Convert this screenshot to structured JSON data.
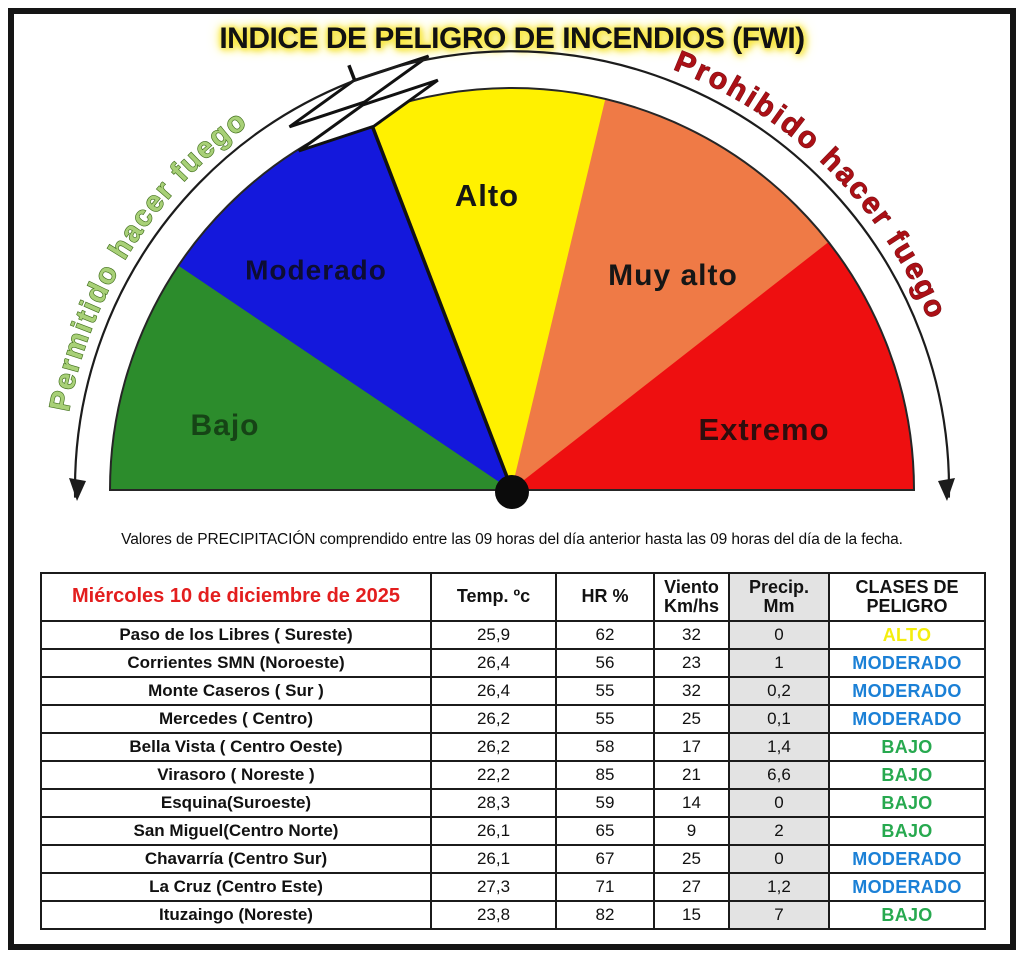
{
  "title": "INDICE DE PELIGRO DE INCENDIOS (FWI)",
  "caption": "Valores de PRECIPITACIÓN comprendido entre las 09 horas del día anterior hasta las 09 horas del día de la fecha.",
  "chart_data": [
    {
      "type": "gauge",
      "title": "INDICE DE PELIGRO DE INCENDIOS (FWI)",
      "sectors": [
        {
          "label": "Bajo",
          "color": "#2c8c2c",
          "label_color": "#164416",
          "start_deg": 180,
          "end_deg": 146
        },
        {
          "label": "Moderado",
          "color": "#1418dc",
          "label_color": "#0d0d33",
          "start_deg": 146,
          "end_deg": 111
        },
        {
          "label": "Alto",
          "color": "#fff100",
          "label_color": "#151515",
          "start_deg": 111,
          "end_deg": 76.5
        },
        {
          "label": "Muy alto",
          "color": "#ef7a46",
          "label_color": "#161616",
          "start_deg": 76.5,
          "end_deg": 38
        },
        {
          "label": "Extremo",
          "color": "#ee0f10",
          "label_color": "#2f0d0d",
          "start_deg": 38,
          "end_deg": 0
        }
      ],
      "needle_deg": 111,
      "needle_points_between": [
        "Moderado",
        "Alto"
      ],
      "arc_labels": {
        "left": {
          "text": "Permitido hacer fuego",
          "fill": "#a8d077",
          "stroke": "#416f1d"
        },
        "right": {
          "text": "Prohibido hacer fuego",
          "fill": "#ab1016",
          "stroke": "#6d0a0e"
        }
      }
    },
    {
      "type": "table",
      "header": {
        "date": "Miércoles 10 de diciembre de 2025",
        "temp": "Temp. ºc",
        "hr": "HR %",
        "wind": "Viento\nKm/hs",
        "precip": "Precip.\nMm",
        "danger": "CLASES DE\nPELIGRO"
      },
      "header_date_color": "#e31e1e",
      "rows": [
        {
          "station": "Paso de los Libres ( Sureste)",
          "temp": "25,9",
          "hr": "62",
          "wind": "32",
          "precip": "0",
          "danger": "ALTO"
        },
        {
          "station": "Corrientes SMN (Noroeste)",
          "temp": "26,4",
          "hr": "56",
          "wind": "23",
          "precip": "1",
          "danger": "MODERADO"
        },
        {
          "station": "Monte Caseros ( Sur )",
          "temp": "26,4",
          "hr": "55",
          "wind": "32",
          "precip": "0,2",
          "danger": "MODERADO"
        },
        {
          "station": "Mercedes ( Centro)",
          "temp": "26,2",
          "hr": "55",
          "wind": "25",
          "precip": "0,1",
          "danger": "MODERADO"
        },
        {
          "station": "Bella Vista ( Centro Oeste)",
          "temp": "26,2",
          "hr": "58",
          "wind": "17",
          "precip": "1,4",
          "danger": "BAJO"
        },
        {
          "station": "Virasoro ( Noreste )",
          "temp": "22,2",
          "hr": "85",
          "wind": "21",
          "precip": "6,6",
          "danger": "BAJO"
        },
        {
          "station": "Esquina(Suroeste)",
          "temp": "28,3",
          "hr": "59",
          "wind": "14",
          "precip": "0",
          "danger": "BAJO"
        },
        {
          "station": "San Miguel(Centro Norte)",
          "temp": "26,1",
          "hr": "65",
          "wind": "9",
          "precip": "2",
          "danger": "BAJO"
        },
        {
          "station": "Chavarría (Centro Sur)",
          "temp": "26,1",
          "hr": "67",
          "wind": "25",
          "precip": "0",
          "danger": "MODERADO"
        },
        {
          "station": "La Cruz (Centro Este)",
          "temp": "27,3",
          "hr": "71",
          "wind": "27",
          "precip": "1,2",
          "danger": "MODERADO"
        },
        {
          "station": "Ituzaingo (Noreste)",
          "temp": "23,8",
          "hr": "82",
          "wind": "15",
          "precip": "7",
          "danger": "BAJO"
        }
      ],
      "danger_colors": {
        "ALTO": "#f4ee0e",
        "MODERADO": "#1b80d6",
        "BAJO": "#27a94f"
      }
    }
  ]
}
